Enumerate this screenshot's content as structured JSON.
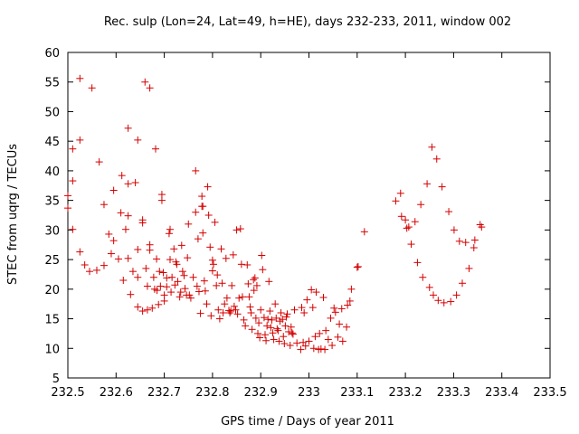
{
  "chart_data": {
    "type": "scatter",
    "title": "Rec. sulp (Lon=24, Lat=49, h=HE), days 232-233, 2011, window 002",
    "xlabel": "GPS time / Days of year 2011",
    "ylabel": "STEC from uqrg / TECUs",
    "xlim": [
      232.5,
      233.5
    ],
    "ylim": [
      5,
      60
    ],
    "x_ticks": [
      232.5,
      232.6,
      232.7,
      232.8,
      232.9,
      233.0,
      233.1,
      233.2,
      233.3,
      233.4,
      233.5
    ],
    "x_tick_labels": [
      "232.5",
      "232.6",
      "232.7",
      "232.8",
      "232.9",
      "233",
      "233.1",
      "233.2",
      "233.3",
      "233.4",
      "233.5"
    ],
    "y_ticks": [
      5,
      10,
      15,
      20,
      25,
      30,
      35,
      40,
      45,
      50,
      55,
      60
    ],
    "y_tick_labels": [
      "5",
      "10",
      "15",
      "20",
      "25",
      "30",
      "35",
      "40",
      "45",
      "50",
      "55",
      "60"
    ],
    "grid": false,
    "marker": "plus",
    "color": "#d40000",
    "points": [
      [
        232.5,
        35.8
      ],
      [
        232.5,
        33.7
      ],
      [
        232.51,
        30.1
      ],
      [
        232.51,
        38.3
      ],
      [
        232.51,
        43.7
      ],
      [
        232.525,
        55.6
      ],
      [
        232.525,
        45.2
      ],
      [
        232.525,
        26.3
      ],
      [
        232.535,
        24.1
      ],
      [
        232.545,
        23.0
      ],
      [
        232.55,
        54.0
      ],
      [
        232.56,
        23.2
      ],
      [
        232.565,
        41.5
      ],
      [
        232.575,
        24.0
      ],
      [
        232.575,
        34.3
      ],
      [
        232.585,
        29.3
      ],
      [
        232.59,
        26.0
      ],
      [
        232.595,
        28.2
      ],
      [
        232.595,
        36.7
      ],
      [
        232.605,
        25.1
      ],
      [
        232.61,
        32.9
      ],
      [
        232.612,
        39.2
      ],
      [
        232.615,
        21.5
      ],
      [
        232.62,
        30.1
      ],
      [
        232.625,
        47.2
      ],
      [
        232.625,
        37.8
      ],
      [
        232.625,
        32.4
      ],
      [
        232.625,
        25.2
      ],
      [
        232.63,
        19.1
      ],
      [
        232.635,
        23.0
      ],
      [
        232.64,
        38.0
      ],
      [
        232.645,
        45.2
      ],
      [
        232.645,
        26.7
      ],
      [
        232.645,
        22.0
      ],
      [
        232.645,
        17.0
      ],
      [
        232.655,
        31.7
      ],
      [
        232.655,
        31.2
      ],
      [
        232.655,
        16.3
      ],
      [
        232.66,
        55.0
      ],
      [
        232.662,
        23.5
      ],
      [
        232.665,
        16.5
      ],
      [
        232.665,
        20.5
      ],
      [
        232.67,
        54.0
      ],
      [
        232.67,
        27.5
      ],
      [
        232.67,
        26.6
      ],
      [
        232.675,
        16.8
      ],
      [
        232.678,
        22.0
      ],
      [
        232.68,
        20.0
      ],
      [
        232.682,
        43.7
      ],
      [
        232.684,
        25.1
      ],
      [
        232.685,
        19.8
      ],
      [
        232.688,
        17.4
      ],
      [
        232.69,
        23.0
      ],
      [
        232.692,
        20.5
      ],
      [
        232.695,
        36.0
      ],
      [
        232.695,
        35.0
      ],
      [
        232.698,
        22.8
      ],
      [
        232.7,
        19.0
      ],
      [
        232.7,
        18.0
      ],
      [
        232.705,
        20.4
      ],
      [
        232.705,
        21.9
      ],
      [
        232.71,
        29.4
      ],
      [
        232.712,
        30.1
      ],
      [
        232.712,
        25.0
      ],
      [
        232.714,
        19.5
      ],
      [
        232.716,
        22.0
      ],
      [
        232.72,
        26.8
      ],
      [
        232.722,
        20.7
      ],
      [
        232.724,
        24.6
      ],
      [
        232.726,
        24.2
      ],
      [
        232.728,
        21.3
      ],
      [
        232.732,
        18.7
      ],
      [
        232.734,
        19.5
      ],
      [
        232.736,
        27.4
      ],
      [
        232.738,
        23.0
      ],
      [
        232.741,
        22.3
      ],
      [
        232.743,
        20.1
      ],
      [
        232.746,
        19.0
      ],
      [
        232.748,
        25.3
      ],
      [
        232.75,
        31.0
      ],
      [
        232.752,
        19.0
      ],
      [
        232.755,
        18.5
      ],
      [
        232.76,
        22.0
      ],
      [
        232.765,
        40.0
      ],
      [
        232.765,
        33.0
      ],
      [
        232.768,
        20.5
      ],
      [
        232.77,
        28.5
      ],
      [
        232.772,
        19.6
      ],
      [
        232.775,
        15.9
      ],
      [
        232.778,
        35.7
      ],
      [
        232.778,
        34.0
      ],
      [
        232.78,
        34.0
      ],
      [
        232.78,
        29.5
      ],
      [
        232.783,
        21.4
      ],
      [
        232.785,
        19.7
      ],
      [
        232.788,
        17.5
      ],
      [
        232.79,
        37.3
      ],
      [
        232.792,
        32.5
      ],
      [
        232.795,
        27.1
      ],
      [
        232.797,
        15.5
      ],
      [
        232.8,
        24.9
      ],
      [
        232.8,
        23.1
      ],
      [
        232.802,
        24.2
      ],
      [
        232.805,
        31.3
      ],
      [
        232.808,
        20.6
      ],
      [
        232.81,
        22.4
      ],
      [
        232.812,
        16.5
      ],
      [
        232.815,
        15.0
      ],
      [
        232.818,
        26.8
      ],
      [
        232.82,
        21.0
      ],
      [
        232.822,
        16.0
      ],
      [
        232.825,
        17.5
      ],
      [
        232.828,
        25.2
      ],
      [
        232.83,
        18.5
      ],
      [
        232.834,
        16.4
      ],
      [
        232.836,
        16.0
      ],
      [
        232.838,
        16.3
      ],
      [
        232.84,
        20.6
      ],
      [
        232.843,
        25.8
      ],
      [
        232.845,
        17.1
      ],
      [
        232.848,
        16.5
      ],
      [
        232.85,
        30.0
      ],
      [
        232.852,
        15.8
      ],
      [
        232.855,
        18.5
      ],
      [
        232.858,
        30.2
      ],
      [
        232.86,
        24.2
      ],
      [
        232.862,
        18.7
      ],
      [
        232.865,
        14.8
      ],
      [
        232.868,
        13.8
      ],
      [
        232.872,
        24.1
      ],
      [
        232.874,
        20.9
      ],
      [
        232.876,
        18.7
      ],
      [
        232.878,
        17.0
      ],
      [
        232.88,
        16.0
      ],
      [
        232.882,
        13.2
      ],
      [
        232.885,
        21.6
      ],
      [
        232.886,
        19.8
      ],
      [
        232.888,
        21.9
      ],
      [
        232.89,
        15.1
      ],
      [
        232.892,
        20.6
      ],
      [
        232.894,
        12.5
      ],
      [
        232.896,
        14.3
      ],
      [
        232.898,
        11.8
      ],
      [
        232.9,
        16.5
      ],
      [
        232.902,
        25.7
      ],
      [
        232.904,
        23.3
      ],
      [
        232.907,
        15.2
      ],
      [
        232.909,
        12.3
      ],
      [
        232.911,
        11.3
      ],
      [
        232.913,
        13.8
      ],
      [
        232.915,
        14.9
      ],
      [
        232.917,
        21.3
      ],
      [
        232.919,
        16.3
      ],
      [
        232.921,
        13.5
      ],
      [
        232.923,
        14.8
      ],
      [
        232.925,
        12.6
      ],
      [
        232.927,
        11.5
      ],
      [
        232.93,
        17.5
      ],
      [
        232.932,
        15.1
      ],
      [
        232.934,
        13.3
      ],
      [
        232.936,
        13.0
      ],
      [
        232.938,
        11.2
      ],
      [
        232.94,
        14.6
      ],
      [
        232.942,
        16.0
      ],
      [
        232.945,
        14.9
      ],
      [
        232.947,
        12.0
      ],
      [
        232.949,
        10.8
      ],
      [
        232.951,
        13.8
      ],
      [
        232.953,
        15.3
      ],
      [
        232.955,
        15.8
      ],
      [
        232.958,
        12.8
      ],
      [
        232.961,
        10.5
      ],
      [
        232.963,
        13.6
      ],
      [
        232.965,
        12.6
      ],
      [
        232.967,
        12.4
      ],
      [
        232.97,
        16.5
      ],
      [
        232.975,
        10.9
      ],
      [
        232.983,
        9.8
      ],
      [
        232.985,
        16.9
      ],
      [
        232.988,
        11.0
      ],
      [
        232.99,
        16.0
      ],
      [
        232.993,
        10.4
      ],
      [
        232.996,
        18.2
      ],
      [
        233.0,
        11.2
      ],
      [
        233.005,
        19.9
      ],
      [
        233.008,
        16.9
      ],
      [
        233.01,
        10.0
      ],
      [
        233.013,
        12.0
      ],
      [
        233.015,
        19.5
      ],
      [
        233.02,
        9.8
      ],
      [
        233.022,
        12.5
      ],
      [
        233.025,
        9.9
      ],
      [
        233.03,
        18.6
      ],
      [
        233.033,
        9.8
      ],
      [
        233.035,
        13.0
      ],
      [
        233.04,
        11.5
      ],
      [
        233.045,
        15.1
      ],
      [
        233.048,
        10.5
      ],
      [
        233.052,
        16.8
      ],
      [
        233.055,
        16.1
      ],
      [
        233.06,
        11.9
      ],
      [
        233.063,
        14.1
      ],
      [
        233.068,
        16.7
      ],
      [
        233.07,
        11.2
      ],
      [
        233.078,
        13.6
      ],
      [
        233.08,
        17.3
      ],
      [
        233.085,
        18.0
      ],
      [
        233.088,
        20.0
      ],
      [
        233.1,
        23.7
      ],
      [
        233.102,
        23.8
      ],
      [
        233.115,
        29.7
      ],
      [
        233.18,
        34.9
      ],
      [
        233.19,
        36.2
      ],
      [
        233.192,
        32.3
      ],
      [
        233.2,
        31.7
      ],
      [
        233.203,
        30.3
      ],
      [
        233.207,
        30.5
      ],
      [
        233.212,
        27.6
      ],
      [
        233.22,
        31.4
      ],
      [
        233.225,
        24.5
      ],
      [
        233.232,
        34.3
      ],
      [
        233.236,
        22.0
      ],
      [
        233.245,
        37.8
      ],
      [
        233.25,
        20.3
      ],
      [
        233.255,
        44.0
      ],
      [
        233.258,
        19.0
      ],
      [
        233.265,
        42.0
      ],
      [
        233.268,
        18.1
      ],
      [
        233.276,
        37.3
      ],
      [
        233.28,
        17.7
      ],
      [
        233.29,
        33.1
      ],
      [
        233.294,
        17.9
      ],
      [
        233.301,
        30.0
      ],
      [
        233.306,
        19.0
      ],
      [
        233.312,
        28.1
      ],
      [
        233.318,
        21.0
      ],
      [
        233.325,
        27.9
      ],
      [
        233.332,
        23.5
      ],
      [
        233.342,
        27.0
      ],
      [
        233.344,
        28.3
      ],
      [
        233.355,
        30.9
      ],
      [
        233.358,
        30.5
      ]
    ]
  }
}
